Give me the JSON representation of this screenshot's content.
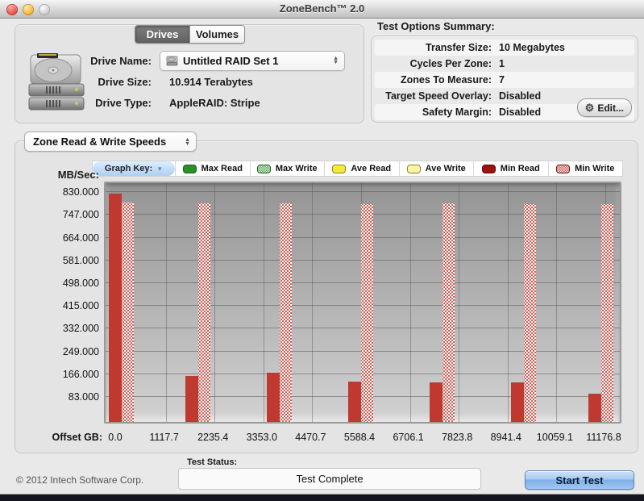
{
  "window": {
    "title": "ZoneBench™ 2.0"
  },
  "tabs": [
    {
      "label": "Drives",
      "selected": true
    },
    {
      "label": "Volumes",
      "selected": false
    }
  ],
  "drive": {
    "name_label": "Drive Name:",
    "name_value": "Untitled RAID Set 1",
    "size_label": "Drive Size:",
    "size_value": "10.914 Terabytes",
    "type_label": "Drive Type:",
    "type_value": "AppleRAID: Stripe"
  },
  "options": {
    "title": "Test Options Summary:",
    "rows": [
      {
        "label": "Transfer Size:",
        "value": "10 Megabytes"
      },
      {
        "label": "Cycles Per Zone:",
        "value": "1"
      },
      {
        "label": "Zones To Measure:",
        "value": "7"
      },
      {
        "label": "Target Speed Overlay:",
        "value": "Disabled"
      },
      {
        "label": "Safety Margin:",
        "value": "Disabled"
      }
    ],
    "edit_label": "Edit..."
  },
  "chart_selector": "Zone Read & Write Speeds",
  "legend": {
    "title": "Graph Key:",
    "items": [
      {
        "label": "Max Read",
        "color": "#2d9026",
        "border": "#1d5c1a",
        "pattern": false
      },
      {
        "label": "Max Write",
        "color": "#2d9026",
        "border": "#1d5c1a",
        "pattern": true
      },
      {
        "label": "Ave Read",
        "color": "#f4e93c",
        "border": "#8a8423",
        "pattern": false
      },
      {
        "label": "Ave Write",
        "color": "#f4e93c",
        "border": "#8a8423",
        "pattern": true
      },
      {
        "label": "Min Read",
        "color": "#9c120c",
        "border": "#5e0b07",
        "pattern": false
      },
      {
        "label": "Min Write",
        "color": "#b8352c",
        "border": "#6e0f0a",
        "pattern": true
      }
    ]
  },
  "chart_data": {
    "type": "bar",
    "title": "Zone Read & Write Speeds",
    "ylabel": "MB/Sec:",
    "xlabel": "Offset GB:",
    "ylim": [
      0,
      860
    ],
    "grid": true,
    "y_ticks": [
      "830.000",
      "747.000",
      "664.000",
      "581.000",
      "498.000",
      "415.000",
      "332.000",
      "249.000",
      "166.000",
      "83.000"
    ],
    "x_ticks": [
      "0.0",
      "1117.7",
      "2235.4",
      "3353.0",
      "4470.7",
      "5588.4",
      "6706.1",
      "7823.8",
      "8941.4",
      "10059.1",
      "11176.8"
    ],
    "bar_color": "#bf3931",
    "zone_fracs": [
      0,
      0.1667,
      0.3333,
      0.5,
      0.6667,
      0.8333,
      1
    ],
    "series": [
      {
        "name": "Min Read",
        "pattern": false,
        "values": [
          835,
          168,
          181,
          147,
          144,
          144,
          102
        ]
      },
      {
        "name": "Min Write",
        "pattern": true,
        "values": [
          801,
          799,
          799,
          796,
          797,
          796,
          794
        ]
      }
    ]
  },
  "footer": {
    "copyright": "© 2012 Intech Software Corp.",
    "status_label": "Test Status:",
    "status_value": "Test Complete",
    "start_label": "Start Test"
  }
}
